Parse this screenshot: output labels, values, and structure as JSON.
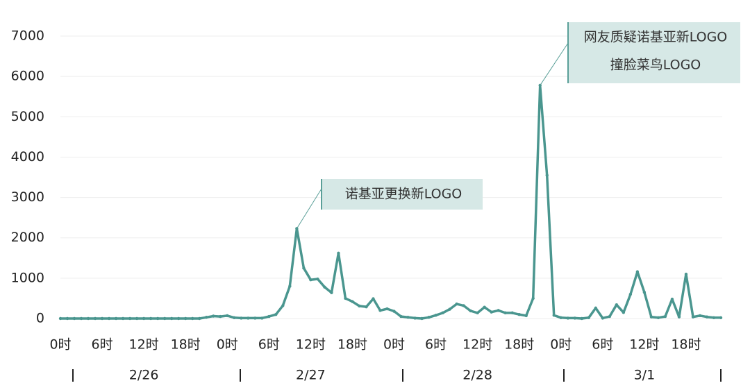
{
  "chart_data": {
    "type": "line",
    "categories": [
      "0时",
      null,
      null,
      null,
      null,
      null,
      "6时",
      null,
      null,
      null,
      null,
      null,
      "12时",
      null,
      null,
      null,
      null,
      null,
      "18时",
      null,
      null,
      null,
      null,
      null,
      "0时",
      null,
      null,
      null,
      null,
      null,
      "6时",
      null,
      null,
      null,
      null,
      null,
      "12时",
      null,
      null,
      null,
      null,
      null,
      "18时",
      null,
      null,
      null,
      null,
      null,
      "0时",
      null,
      null,
      null,
      null,
      null,
      "6时",
      null,
      null,
      null,
      null,
      null,
      "12时",
      null,
      null,
      null,
      null,
      null,
      "18时",
      null,
      null,
      null,
      null,
      null,
      "0时",
      null,
      null,
      null,
      null,
      null,
      "6时",
      null,
      null,
      null,
      null,
      null,
      "12时",
      null,
      null,
      null,
      null,
      null,
      "18时",
      null,
      null,
      null,
      null,
      null
    ],
    "groups": [
      "2/26",
      "2/27",
      "2/28",
      "3/1"
    ],
    "values": [
      0,
      0,
      0,
      0,
      0,
      0,
      0,
      0,
      0,
      0,
      0,
      0,
      0,
      0,
      0,
      0,
      0,
      0,
      0,
      0,
      0,
      30,
      60,
      50,
      70,
      20,
      10,
      10,
      10,
      10,
      50,
      100,
      320,
      800,
      2230,
      1250,
      960,
      980,
      780,
      640,
      1620,
      500,
      420,
      310,
      290,
      490,
      200,
      240,
      180,
      50,
      30,
      10,
      0,
      30,
      80,
      140,
      230,
      360,
      320,
      190,
      140,
      280,
      160,
      200,
      140,
      140,
      100,
      70,
      500,
      5780,
      3550,
      80,
      20,
      10,
      10,
      0,
      20,
      260,
      10,
      50,
      340,
      150,
      600,
      1160,
      650,
      40,
      20,
      50,
      480,
      40,
      1100,
      40,
      70,
      40,
      20,
      20
    ],
    "color": "#4a968f",
    "ylim": [
      0,
      7000
    ],
    "yticks": [
      0,
      1000,
      2000,
      3000,
      4000,
      5000,
      6000,
      7000
    ],
    "grid": true,
    "annotations": [
      {
        "lines": [
          "诺基亚更换新LOGO"
        ]
      },
      {
        "lines": [
          "网友质疑诺基亚新LOGO",
          "撞脸菜鸟LOGO"
        ]
      }
    ]
  }
}
